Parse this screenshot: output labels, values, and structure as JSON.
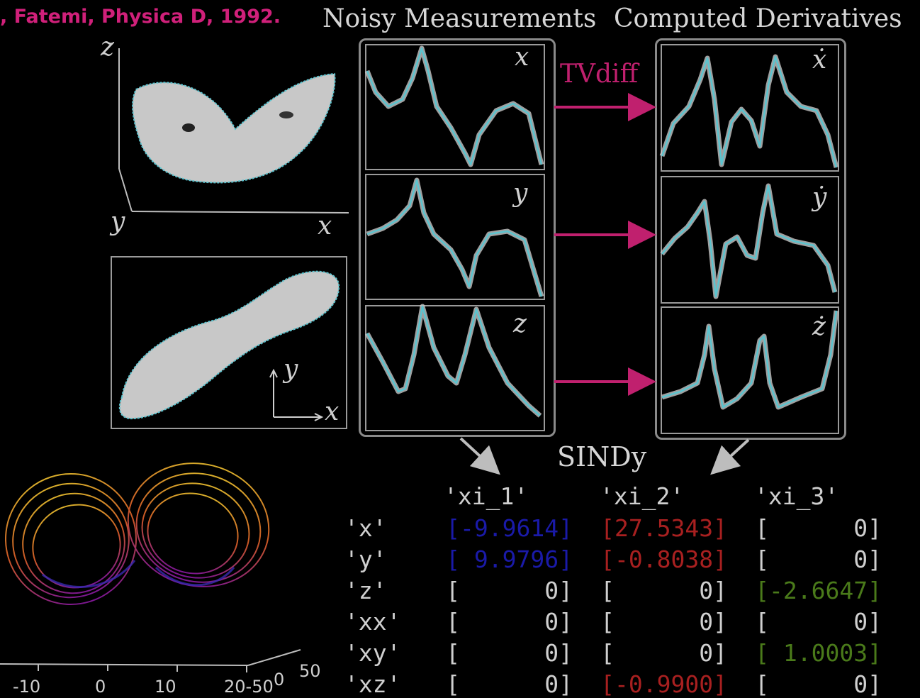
{
  "citation": ", Fatemi, Physica D, 1992.",
  "headers": {
    "noisy": "Noisy Measurements",
    "derivatives": "Computed Derivatives"
  },
  "method_label": "TVdiff",
  "regression_label": "SINDy",
  "measurement_labels": [
    "x",
    "y",
    "z"
  ],
  "derivative_labels": [
    "ẋ",
    "ẏ",
    "ż"
  ],
  "attractor_3d_axes": {
    "z": "z",
    "y": "y",
    "x": "x"
  },
  "attractor_2d_axes": {
    "y": "y",
    "x": "x"
  },
  "bottom_axis_ticks": [
    "-10",
    "0",
    "10",
    "20-50",
    "0",
    "50"
  ],
  "colors": {
    "magenta": "#c0206e",
    "teal": "#5cc4cf",
    "noise": "#c8c8c8",
    "blue": "#1a1aa8",
    "red": "#a82020",
    "green": "#4a7a1a"
  },
  "table": {
    "columns": [
      "'xi_1'",
      "'xi_2'",
      "'xi_3'"
    ],
    "rows": [
      {
        "label": "'x'",
        "cells": [
          "[-9.9614]",
          "[27.5343]",
          "[      0]"
        ],
        "colors": [
          "blue",
          "red",
          "plain"
        ]
      },
      {
        "label": "'y'",
        "cells": [
          "[ 9.9796]",
          "[-0.8038]",
          "[      0]"
        ],
        "colors": [
          "blue",
          "red",
          "plain"
        ]
      },
      {
        "label": "'z'",
        "cells": [
          "[      0]",
          "[      0]",
          "[-2.6647]"
        ],
        "colors": [
          "plain",
          "plain",
          "green"
        ]
      },
      {
        "label": "'xx'",
        "cells": [
          "[      0]",
          "[      0]",
          "[      0]"
        ],
        "colors": [
          "plain",
          "plain",
          "plain"
        ]
      },
      {
        "label": "'xy'",
        "cells": [
          "[      0]",
          "[      0]",
          "[ 1.0003]"
        ],
        "colors": [
          "plain",
          "plain",
          "green"
        ]
      },
      {
        "label": "'xz'",
        "cells": [
          "[      0]",
          "[-0.9900]",
          "[      0]"
        ],
        "colors": [
          "plain",
          "red",
          "plain"
        ]
      }
    ]
  }
}
